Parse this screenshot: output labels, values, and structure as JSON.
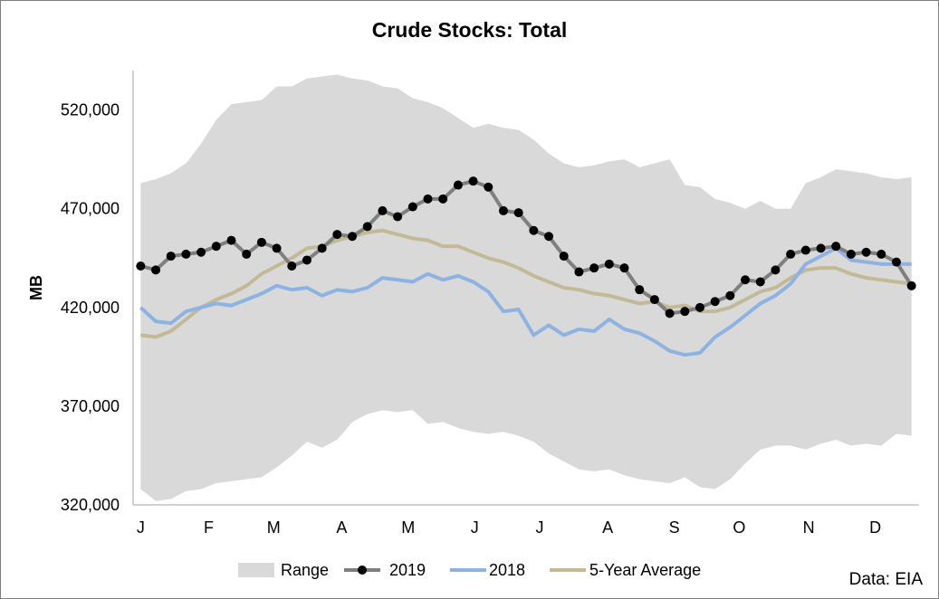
{
  "chart_data": {
    "type": "line",
    "title": "Crude Stocks: Total",
    "ylabel": "MB",
    "source": "Data: EIA",
    "ylim": [
      320000,
      540000
    ],
    "yticks": [
      320000,
      370000,
      420000,
      470000,
      520000
    ],
    "ytick_labels": [
      "320,000",
      "370,000",
      "420,000",
      "470,000",
      "520,000"
    ],
    "x": [
      1,
      2,
      3,
      4,
      5,
      6,
      7,
      8,
      9,
      10,
      11,
      12,
      13,
      14,
      15,
      16,
      17,
      18,
      19,
      20,
      21,
      22,
      23,
      24,
      25,
      26,
      27,
      28,
      29,
      30,
      31,
      32,
      33,
      34,
      35,
      36,
      37,
      38,
      39,
      40,
      41,
      42,
      43,
      44,
      45,
      46,
      47,
      48,
      49,
      50,
      51,
      52
    ],
    "xlim": [
      0.5,
      52.5
    ],
    "month_ticks": [
      {
        "label": "J",
        "week": 1
      },
      {
        "label": "F",
        "week": 5.5
      },
      {
        "label": "M",
        "week": 9.8
      },
      {
        "label": "A",
        "week": 14.3
      },
      {
        "label": "M",
        "week": 18.7
      },
      {
        "label": "J",
        "week": 23.1
      },
      {
        "label": "J",
        "week": 27.4
      },
      {
        "label": "A",
        "week": 31.9
      },
      {
        "label": "S",
        "week": 36.3
      },
      {
        "label": "O",
        "week": 40.6
      },
      {
        "label": "N",
        "week": 45.2
      },
      {
        "label": "D",
        "week": 49.6
      }
    ],
    "legend_position": "bottom",
    "range": {
      "name": "Range",
      "color": "#d9d9d9",
      "high": [
        483000,
        485000,
        488000,
        493000,
        503000,
        515000,
        523000,
        524000,
        525000,
        532000,
        532000,
        536000,
        537000,
        538000,
        536000,
        535000,
        532000,
        531000,
        526000,
        524000,
        521000,
        516000,
        511000,
        513000,
        511000,
        510000,
        505000,
        498000,
        493000,
        491000,
        492000,
        494000,
        495000,
        491000,
        493000,
        495000,
        482000,
        481000,
        475000,
        473000,
        470000,
        474000,
        470000,
        470000,
        483000,
        486000,
        490000,
        489000,
        488000,
        486000,
        485000,
        486000
      ],
      "low": [
        328000,
        322000,
        323000,
        327000,
        328000,
        331000,
        332000,
        333000,
        334000,
        339000,
        345000,
        352000,
        349000,
        353000,
        362000,
        366000,
        368000,
        367000,
        368000,
        361000,
        362000,
        359000,
        357000,
        356000,
        357000,
        355000,
        352000,
        346000,
        342000,
        338000,
        337000,
        338000,
        335000,
        333000,
        332000,
        331000,
        334000,
        329000,
        328000,
        333000,
        341000,
        348000,
        350000,
        350000,
        348000,
        351000,
        353000,
        350000,
        351000,
        350000,
        356000,
        355000
      ]
    },
    "series": [
      {
        "name": "2019",
        "color": "#7f7f7f",
        "marker": "circle",
        "values": [
          441000,
          439000,
          446000,
          447000,
          448000,
          451000,
          454000,
          447000,
          453000,
          450000,
          441000,
          444000,
          450000,
          457000,
          456000,
          461000,
          469000,
          466000,
          471000,
          475000,
          475000,
          482000,
          484000,
          481000,
          469000,
          468000,
          459000,
          456000,
          446000,
          438000,
          440000,
          442000,
          440000,
          429000,
          424000,
          417000,
          418000,
          420000,
          423000,
          426000,
          434000,
          433000,
          439000,
          447000,
          449000,
          450000,
          451000,
          447000,
          448000,
          447000,
          443000,
          431000
        ]
      },
      {
        "name": "2018",
        "color": "#8db3e2",
        "values": [
          420000,
          413000,
          412000,
          418000,
          420000,
          422000,
          421000,
          424000,
          427000,
          431000,
          429000,
          430000,
          426000,
          429000,
          428000,
          430000,
          435000,
          434000,
          433000,
          437000,
          434000,
          436000,
          433000,
          428000,
          418000,
          419000,
          406000,
          411000,
          406000,
          409000,
          408000,
          414000,
          409000,
          407000,
          403000,
          398000,
          396000,
          397000,
          405000,
          410000,
          416000,
          422000,
          426000,
          432000,
          442000,
          446000,
          450000,
          444000,
          443000,
          442000,
          442000,
          442000
        ]
      },
      {
        "name": "5-Year Average",
        "color": "#c4b996",
        "values": [
          406000,
          405000,
          408000,
          414000,
          420000,
          424000,
          427000,
          431000,
          437000,
          441000,
          445000,
          450000,
          451000,
          454000,
          456000,
          458000,
          459000,
          457000,
          455000,
          454000,
          451000,
          451000,
          448000,
          445000,
          443000,
          440000,
          436000,
          433000,
          430000,
          429000,
          427000,
          426000,
          424000,
          422000,
          423000,
          420000,
          421000,
          418000,
          418000,
          420000,
          424000,
          428000,
          430000,
          435000,
          439000,
          440000,
          440000,
          437000,
          435000,
          434000,
          433000,
          432000
        ]
      }
    ]
  }
}
